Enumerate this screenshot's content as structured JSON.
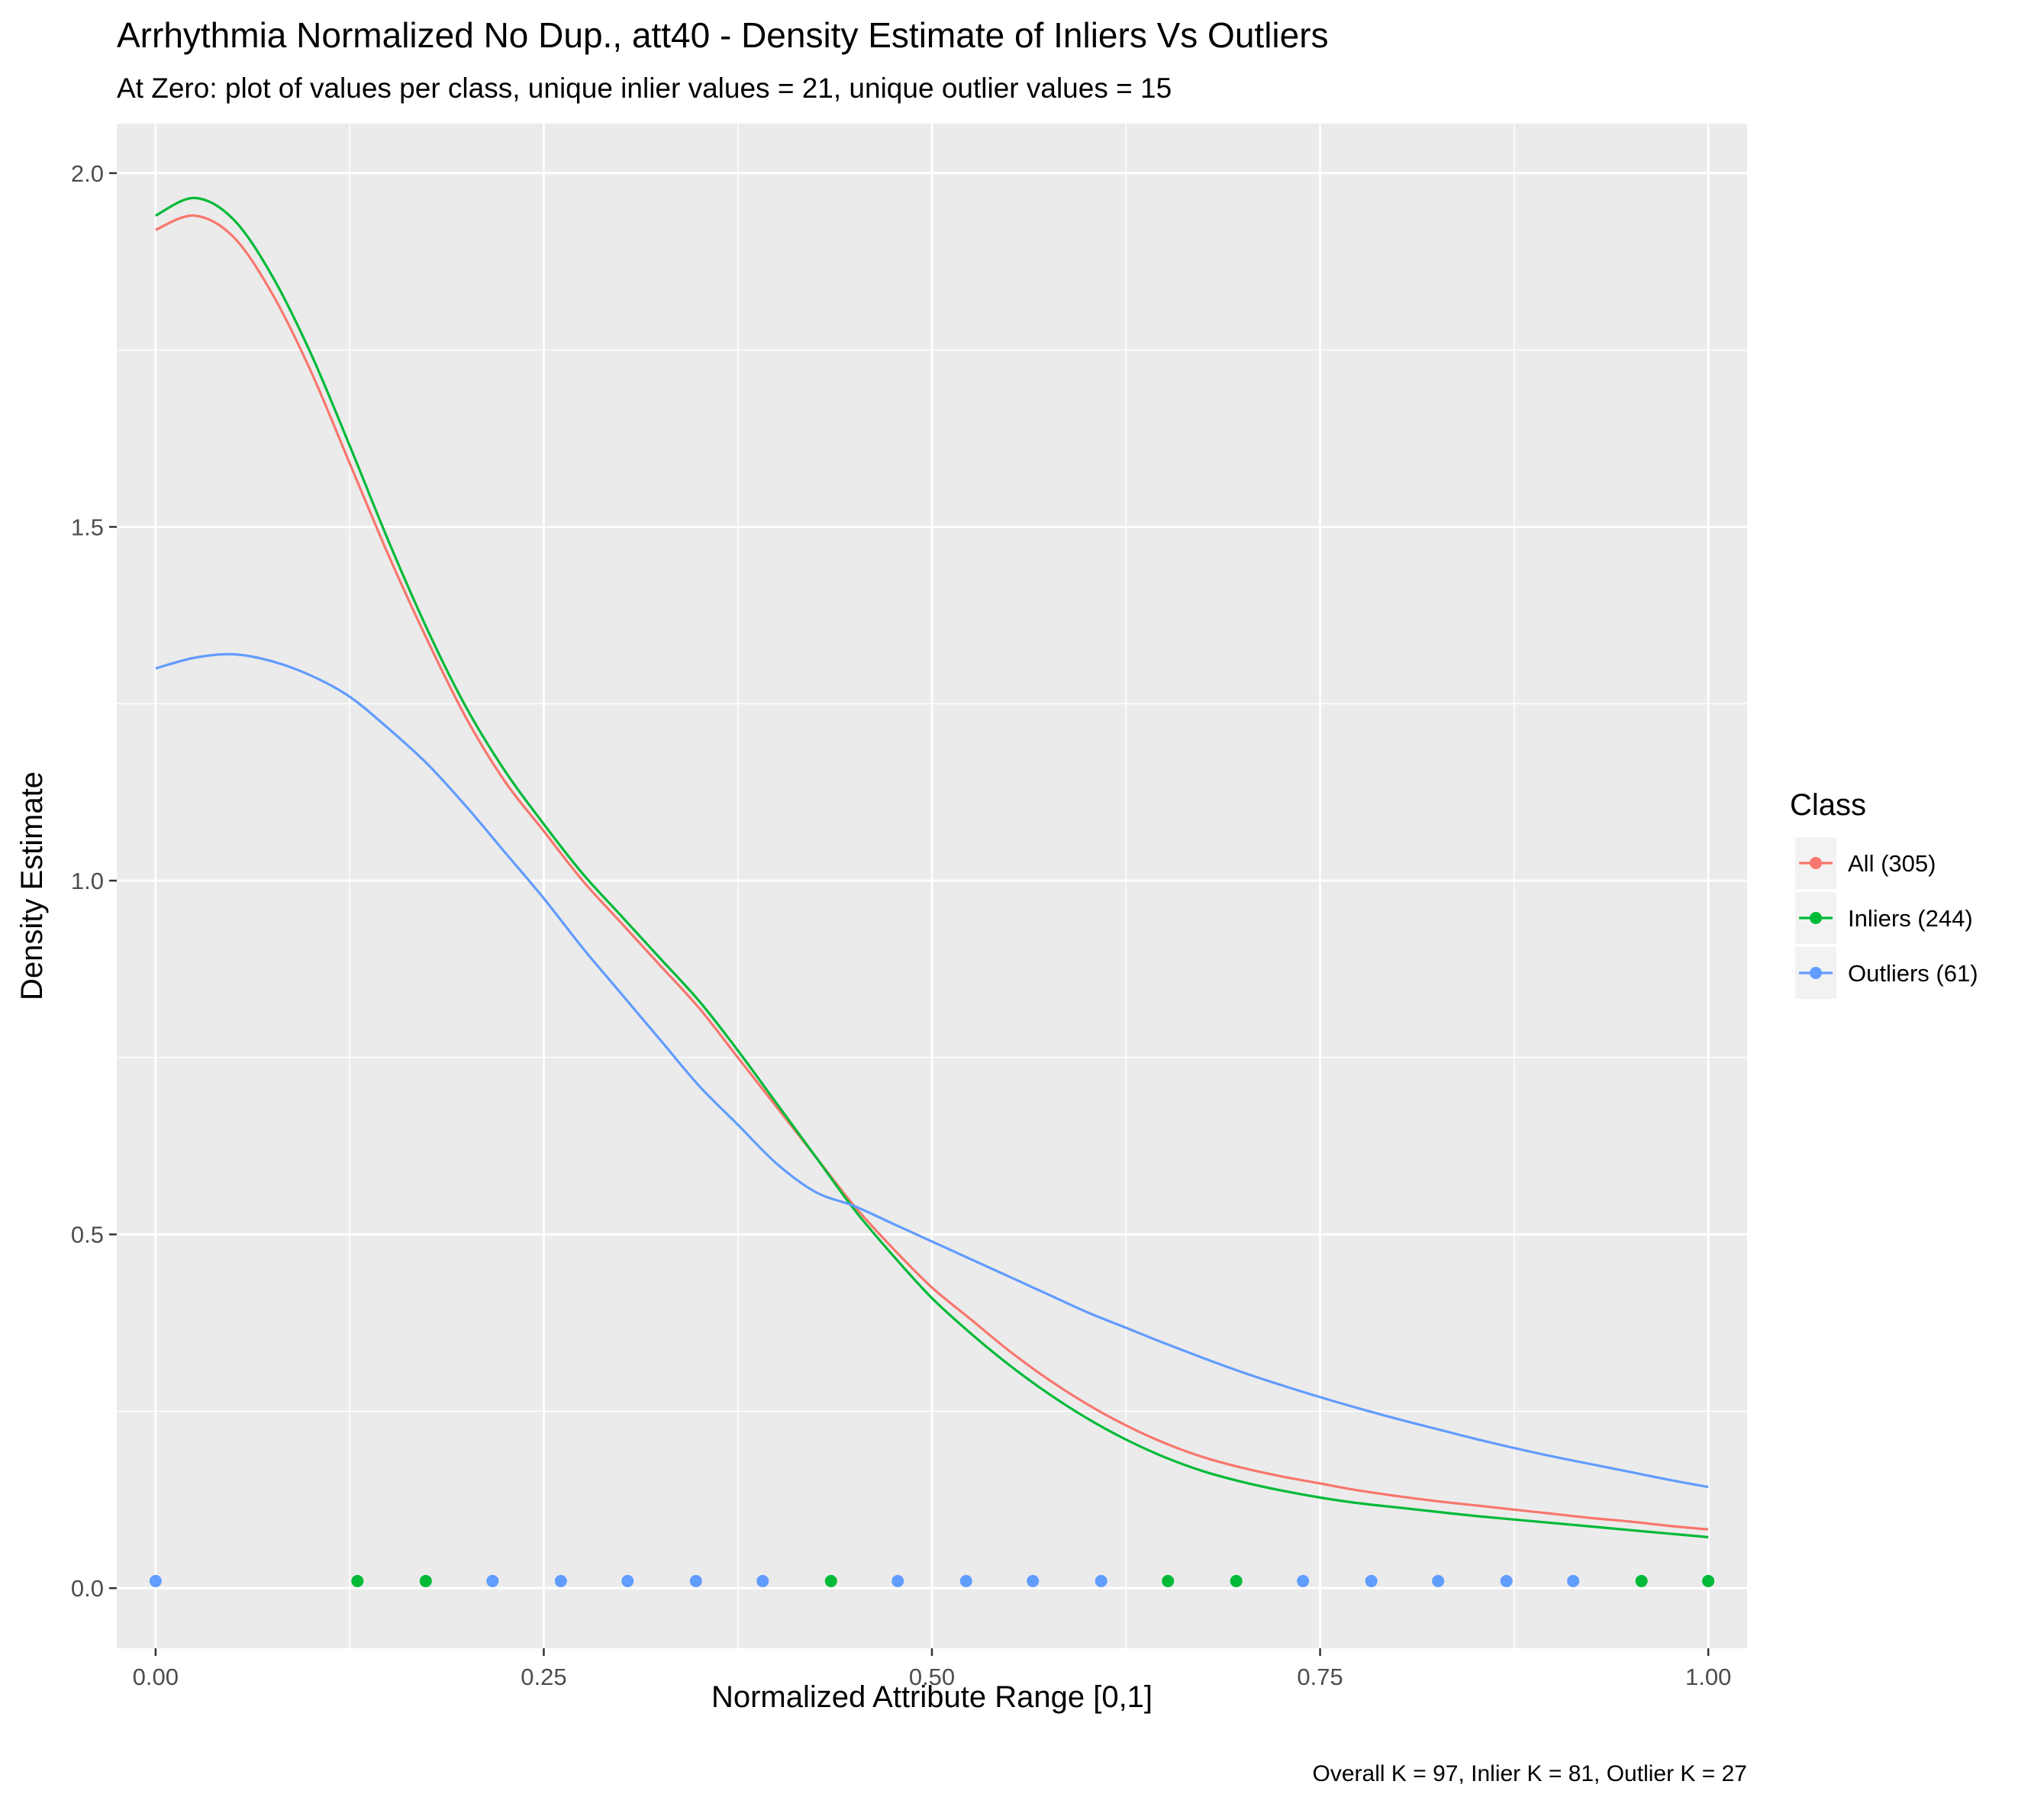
{
  "chart_data": {
    "type": "line",
    "title": "Arrhythmia Normalized No Dup., att40 - Density Estimate of Inliers Vs Outliers",
    "subtitle": "At Zero: plot of values per class, unique inlier values = 21, unique outlier values = 15",
    "xlabel": "Normalized Attribute Range [0,1]",
    "ylabel": "Density Estimate",
    "caption": "Overall K = 97, Inlier K = 81, Outlier K = 27",
    "xlim": [
      -0.025,
      1.025
    ],
    "ylim": [
      -0.085,
      2.07
    ],
    "x_ticks": [
      0.0,
      0.25,
      0.5,
      0.75,
      1.0
    ],
    "x_tick_labels": [
      "0.00",
      "0.25",
      "0.50",
      "0.75",
      "1.00"
    ],
    "y_ticks": [
      0.0,
      0.5,
      1.0,
      1.5,
      2.0
    ],
    "y_tick_labels": [
      "0.0",
      "0.5",
      "1.0",
      "1.5",
      "2.0"
    ],
    "grid": true,
    "legend": {
      "title": "Class",
      "position": "right"
    },
    "series": [
      {
        "name": "All (305)",
        "color": "#F8766D",
        "x": [
          0.0,
          0.025,
          0.05,
          0.075,
          0.1,
          0.125,
          0.15,
          0.175,
          0.2,
          0.225,
          0.25,
          0.275,
          0.3,
          0.325,
          0.35,
          0.375,
          0.4,
          0.425,
          0.45,
          0.475,
          0.5,
          0.525,
          0.55,
          0.575,
          0.6,
          0.625,
          0.65,
          0.675,
          0.7,
          0.725,
          0.75,
          0.775,
          0.8,
          0.825,
          0.85,
          0.875,
          0.9,
          0.925,
          0.95,
          0.975,
          1.0
        ],
        "y": [
          1.92,
          1.94,
          1.91,
          1.83,
          1.72,
          1.59,
          1.46,
          1.34,
          1.23,
          1.14,
          1.07,
          1.0,
          0.94,
          0.88,
          0.82,
          0.75,
          0.68,
          0.61,
          0.54,
          0.48,
          0.425,
          0.38,
          0.335,
          0.295,
          0.26,
          0.23,
          0.205,
          0.185,
          0.17,
          0.158,
          0.148,
          0.138,
          0.13,
          0.123,
          0.117,
          0.111,
          0.105,
          0.099,
          0.094,
          0.088,
          0.083
        ]
      },
      {
        "name": "Inliers (244)",
        "color": "#00BA38",
        "x": [
          0.0,
          0.025,
          0.05,
          0.075,
          0.1,
          0.125,
          0.15,
          0.175,
          0.2,
          0.225,
          0.25,
          0.275,
          0.3,
          0.325,
          0.35,
          0.375,
          0.4,
          0.425,
          0.45,
          0.475,
          0.5,
          0.525,
          0.55,
          0.575,
          0.6,
          0.625,
          0.65,
          0.675,
          0.7,
          0.725,
          0.75,
          0.775,
          0.8,
          0.825,
          0.85,
          0.875,
          0.9,
          0.925,
          0.95,
          0.975,
          1.0
        ],
        "y": [
          1.94,
          1.965,
          1.935,
          1.855,
          1.745,
          1.615,
          1.48,
          1.355,
          1.245,
          1.155,
          1.08,
          1.01,
          0.95,
          0.89,
          0.83,
          0.76,
          0.685,
          0.61,
          0.535,
          0.47,
          0.41,
          0.36,
          0.315,
          0.275,
          0.24,
          0.21,
          0.185,
          0.165,
          0.15,
          0.138,
          0.128,
          0.12,
          0.114,
          0.108,
          0.102,
          0.097,
          0.092,
          0.087,
          0.082,
          0.077,
          0.072
        ]
      },
      {
        "name": "Outliers (61)",
        "color": "#619CFF",
        "x": [
          0.0,
          0.025,
          0.05,
          0.075,
          0.1,
          0.125,
          0.15,
          0.175,
          0.2,
          0.225,
          0.25,
          0.275,
          0.3,
          0.325,
          0.35,
          0.375,
          0.4,
          0.425,
          0.45,
          0.475,
          0.5,
          0.525,
          0.55,
          0.575,
          0.6,
          0.625,
          0.65,
          0.675,
          0.7,
          0.725,
          0.75,
          0.775,
          0.8,
          0.825,
          0.85,
          0.875,
          0.9,
          0.925,
          0.95,
          0.975,
          1.0
        ],
        "y": [
          1.3,
          1.315,
          1.32,
          1.31,
          1.29,
          1.26,
          1.215,
          1.165,
          1.105,
          1.04,
          0.975,
          0.905,
          0.84,
          0.775,
          0.71,
          0.655,
          0.6,
          0.56,
          0.54,
          0.515,
          0.49,
          0.465,
          0.44,
          0.415,
          0.39,
          0.368,
          0.346,
          0.325,
          0.305,
          0.287,
          0.27,
          0.254,
          0.239,
          0.225,
          0.211,
          0.198,
          0.186,
          0.175,
          0.164,
          0.153,
          0.143
        ]
      }
    ],
    "points": [
      {
        "x": 0.0,
        "y": 0.01,
        "class": "Outliers (61)"
      },
      {
        "x": 0.13,
        "y": 0.01,
        "class": "Inliers (244)"
      },
      {
        "x": 0.174,
        "y": 0.01,
        "class": "Inliers (244)"
      },
      {
        "x": 0.217,
        "y": 0.01,
        "class": "Outliers (61)"
      },
      {
        "x": 0.261,
        "y": 0.01,
        "class": "Outliers (61)"
      },
      {
        "x": 0.304,
        "y": 0.01,
        "class": "Outliers (61)"
      },
      {
        "x": 0.348,
        "y": 0.01,
        "class": "Outliers (61)"
      },
      {
        "x": 0.391,
        "y": 0.01,
        "class": "Outliers (61)"
      },
      {
        "x": 0.435,
        "y": 0.01,
        "class": "Inliers (244)"
      },
      {
        "x": 0.478,
        "y": 0.01,
        "class": "Outliers (61)"
      },
      {
        "x": 0.522,
        "y": 0.01,
        "class": "Outliers (61)"
      },
      {
        "x": 0.565,
        "y": 0.01,
        "class": "Outliers (61)"
      },
      {
        "x": 0.609,
        "y": 0.01,
        "class": "Outliers (61)"
      },
      {
        "x": 0.652,
        "y": 0.01,
        "class": "Inliers (244)"
      },
      {
        "x": 0.696,
        "y": 0.01,
        "class": "Inliers (244)"
      },
      {
        "x": 0.739,
        "y": 0.01,
        "class": "Outliers (61)"
      },
      {
        "x": 0.783,
        "y": 0.01,
        "class": "Outliers (61)"
      },
      {
        "x": 0.826,
        "y": 0.01,
        "class": "Outliers (61)"
      },
      {
        "x": 0.87,
        "y": 0.01,
        "class": "Outliers (61)"
      },
      {
        "x": 0.913,
        "y": 0.01,
        "class": "Outliers (61)"
      },
      {
        "x": 0.957,
        "y": 0.01,
        "class": "Inliers (244)"
      },
      {
        "x": 1.0,
        "y": 0.01,
        "class": "Inliers (244)"
      }
    ]
  }
}
